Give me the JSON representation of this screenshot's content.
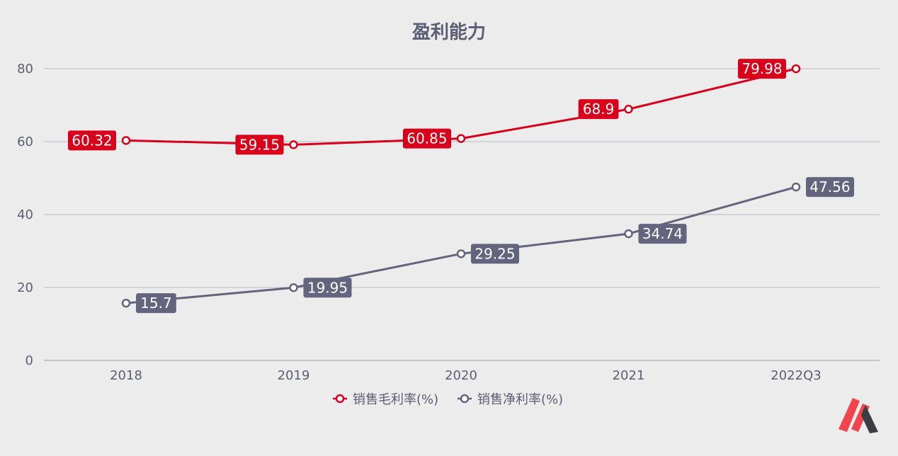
{
  "chart_data": {
    "type": "line",
    "title": "盈利能力",
    "categories": [
      "2018",
      "2019",
      "2020",
      "2021",
      "2022Q3"
    ],
    "series": [
      {
        "name": "销售毛利率(%)",
        "color": "#d9001b",
        "values": [
          60.32,
          59.15,
          60.85,
          68.9,
          79.98
        ],
        "label_side": "left"
      },
      {
        "name": "销售净利率(%)",
        "color": "#62657d",
        "values": [
          15.7,
          19.95,
          29.25,
          34.74,
          47.56
        ],
        "label_side": "right"
      }
    ],
    "yticks": [
      0,
      20,
      40,
      60,
      80
    ],
    "ylim": [
      0,
      80
    ],
    "grid": true,
    "legend": "bottom-center"
  },
  "logo": {
    "icon": "brand-logo-m-icon",
    "colors": [
      "#f0454b",
      "#3c3c44"
    ]
  }
}
